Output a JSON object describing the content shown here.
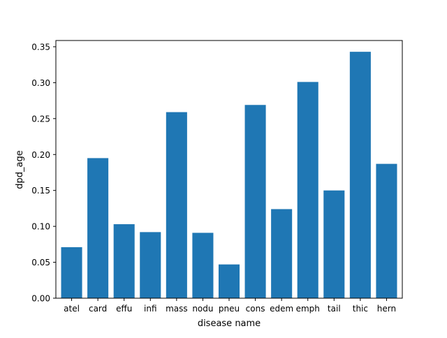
{
  "chart_data": {
    "type": "bar",
    "title": "",
    "xlabel": "disease name",
    "ylabel": "dpd_age",
    "categories": [
      "atel",
      "card",
      "effu",
      "infi",
      "mass",
      "nodu",
      "pneu",
      "cons",
      "edem",
      "emph",
      "tail",
      "thic",
      "hern"
    ],
    "values": [
      0.071,
      0.195,
      0.103,
      0.092,
      0.259,
      0.091,
      0.047,
      0.269,
      0.124,
      0.301,
      0.15,
      0.343,
      0.187
    ],
    "ylim": [
      0,
      0.3587
    ],
    "yticks": [
      0.0,
      0.05,
      0.1,
      0.15,
      0.2,
      0.25,
      0.3,
      0.35
    ],
    "ytick_labels": [
      "0.00",
      "0.05",
      "0.10",
      "0.15",
      "0.20",
      "0.25",
      "0.30",
      "0.35"
    ],
    "grid": false,
    "legend": "none",
    "colors": {
      "bar": "#1f77b4",
      "axes": "#000000",
      "background": "#ffffff"
    }
  }
}
